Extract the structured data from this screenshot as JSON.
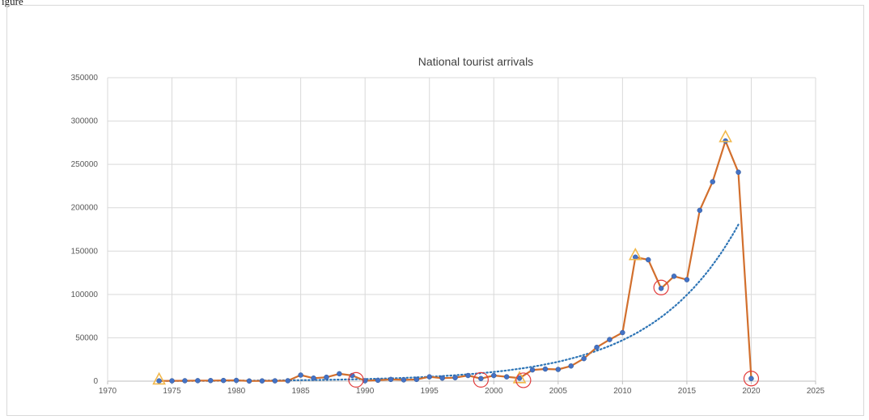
{
  "figure_label": "igure",
  "chart_data": {
    "type": "line",
    "title": "National tourist arrivals",
    "xlabel": "",
    "ylabel": "",
    "xlim": [
      1970,
      2025
    ],
    "ylim": [
      0,
      350000
    ],
    "x_ticks": [
      1970,
      1975,
      1980,
      1985,
      1990,
      1995,
      2000,
      2005,
      2010,
      2015,
      2020,
      2025
    ],
    "y_ticks": [
      0,
      50000,
      100000,
      150000,
      200000,
      250000,
      300000,
      350000
    ],
    "grid": true,
    "legend": "none",
    "series": [
      {
        "x": [
          1974,
          1975,
          1976,
          1977,
          1978,
          1979,
          1980,
          1981,
          1982,
          1983,
          1984,
          1985,
          1986,
          1987,
          1988,
          1989,
          1990,
          1991,
          1992,
          1993,
          1994,
          1995,
          1996,
          1997,
          1998,
          1999,
          2000,
          2001,
          2002,
          2003,
          2004,
          2005,
          2006,
          2007,
          2008,
          2009,
          2010,
          2011,
          2012,
          2013,
          2014,
          2015,
          2016,
          2017,
          2018,
          2019,
          2020
        ],
        "values": [
          300,
          400,
          500,
          600,
          700,
          800,
          900,
          200,
          300,
          400,
          500,
          7000,
          3500,
          4500,
          8500,
          6500,
          500,
          1000,
          2000,
          1500,
          2000,
          5000,
          3500,
          4000,
          6500,
          3000,
          6500,
          5000,
          3500,
          13000,
          14000,
          13500,
          17500,
          26000,
          39000,
          48000,
          56000,
          143000,
          140000,
          107000,
          121000,
          117000,
          197000,
          230000,
          277000,
          241000,
          3000
        ],
        "line_color": "#d26f2d",
        "marker_color": "#4472c4"
      }
    ],
    "trendline": {
      "type": "exponential",
      "style": "dotted",
      "color": "#2e75b6",
      "x_range": [
        1974,
        2019
      ]
    },
    "annotations": {
      "triangles": [
        {
          "x": 1974,
          "y": 1500
        },
        {
          "x": 2002,
          "y": 3000
        },
        {
          "x": 2011,
          "y": 145000
        },
        {
          "x": 2018,
          "y": 281000
        }
      ],
      "circles": [
        {
          "x": 1989.3,
          "y": 1500
        },
        {
          "x": 1999,
          "y": 1500
        },
        {
          "x": 2002.3,
          "y": 1000
        },
        {
          "x": 2013,
          "y": 108000
        },
        {
          "x": 2020,
          "y": 3000
        }
      ],
      "triangle_color": "#f2b84b",
      "circle_color": "#e23b3b"
    }
  }
}
